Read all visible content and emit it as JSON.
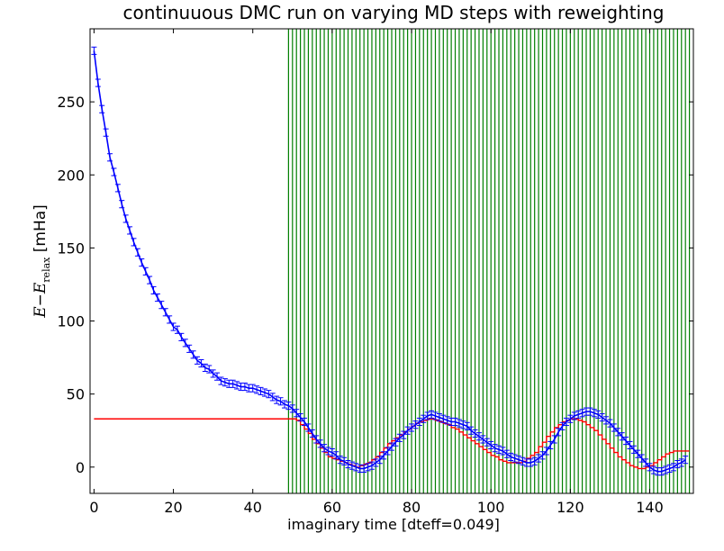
{
  "chart_data": {
    "type": "line",
    "title": "continuuous DMC run on varying MD steps with reweighting",
    "xlabel": "imaginary time [dteff=0.049]",
    "ylabel": {
      "var": "E",
      "minus": "−",
      "sub_var": "E",
      "sub": "relax",
      "unit": " [mHa]"
    },
    "xlim": [
      -1,
      151
    ],
    "ylim": [
      -18,
      300
    ],
    "xticks": [
      0,
      20,
      40,
      60,
      80,
      100,
      120,
      140
    ],
    "yticks": [
      0,
      50,
      100,
      150,
      200,
      250
    ],
    "grid": false,
    "series": [
      {
        "color": "#0000ff",
        "style": "line-with-errorbars",
        "error": 2.5,
        "x": [
          0,
          1,
          2,
          3,
          4,
          5,
          6,
          7,
          8,
          9,
          10,
          11,
          12,
          13,
          14,
          15,
          16,
          17,
          18,
          19,
          20,
          21,
          22,
          23,
          24,
          25,
          26,
          27,
          28,
          29,
          30,
          31,
          32,
          33,
          34,
          35,
          36,
          37,
          38,
          39,
          40,
          41,
          42,
          43,
          44,
          45,
          46,
          47,
          48,
          49,
          50,
          51,
          52,
          53,
          54,
          55,
          56,
          57,
          58,
          59,
          60,
          61,
          62,
          63,
          64,
          65,
          66,
          67,
          68,
          69,
          70,
          71,
          72,
          73,
          74,
          75,
          76,
          77,
          78,
          79,
          80,
          81,
          82,
          83,
          84,
          85,
          86,
          87,
          88,
          89,
          90,
          91,
          92,
          93,
          94,
          95,
          96,
          97,
          98,
          99,
          100,
          101,
          102,
          103,
          104,
          105,
          106,
          107,
          108,
          109,
          110,
          111,
          112,
          113,
          114,
          115,
          116,
          117,
          118,
          119,
          120,
          121,
          122,
          123,
          124,
          125,
          126,
          127,
          128,
          129,
          130,
          131,
          132,
          133,
          134,
          135,
          136,
          137,
          138,
          139,
          140,
          141,
          142,
          143,
          144,
          145,
          146,
          147,
          148,
          149
        ],
        "y": [
          285,
          263,
          245,
          229,
          212,
          202,
          191,
          180,
          170,
          162,
          154,
          147,
          140,
          134,
          128,
          121,
          116,
          111,
          106,
          101,
          96,
          94,
          89,
          85,
          81,
          77,
          73,
          71,
          68,
          67,
          64,
          62,
          59,
          58,
          57,
          57,
          56,
          55,
          55,
          54,
          54,
          53,
          52,
          51,
          50,
          48,
          46,
          45,
          43,
          42,
          40,
          37,
          34,
          31,
          27,
          23,
          19,
          16,
          13,
          11,
          10,
          8,
          5,
          4,
          2,
          1,
          0,
          -1,
          -1,
          0,
          1,
          3,
          5,
          8,
          11,
          14,
          17,
          20,
          22,
          25,
          27,
          29,
          31,
          33,
          35,
          36,
          35,
          34,
          33,
          32,
          31,
          31,
          30,
          29,
          28,
          25,
          23,
          21,
          19,
          17,
          15,
          13,
          12,
          11,
          9,
          7,
          6,
          5,
          4,
          3,
          3,
          4,
          6,
          8,
          11,
          15,
          19,
          24,
          28,
          31,
          33,
          35,
          36,
          37,
          38,
          38,
          37,
          36,
          34,
          32,
          30,
          27,
          24,
          21,
          18,
          15,
          12,
          9,
          6,
          3,
          0,
          -2,
          -3,
          -3,
          -2,
          -1,
          0,
          2,
          3,
          5
        ]
      },
      {
        "color": "#ff0000",
        "style": "step",
        "x": [
          0,
          49,
          50,
          51,
          52,
          53,
          54,
          55,
          56,
          57,
          58,
          59,
          60,
          61,
          62,
          63,
          64,
          65,
          66,
          67,
          68,
          69,
          70,
          71,
          72,
          73,
          74,
          75,
          76,
          77,
          78,
          79,
          80,
          81,
          82,
          83,
          84,
          85,
          86,
          87,
          88,
          89,
          90,
          91,
          92,
          93,
          94,
          95,
          96,
          97,
          98,
          99,
          100,
          101,
          102,
          103,
          104,
          105,
          106,
          107,
          108,
          109,
          110,
          111,
          112,
          113,
          114,
          115,
          116,
          117,
          118,
          119,
          120,
          121,
          122,
          123,
          124,
          125,
          126,
          127,
          128,
          129,
          130,
          131,
          132,
          133,
          134,
          135,
          136,
          137,
          138,
          139,
          140,
          141,
          142,
          143,
          144,
          145,
          146,
          147,
          148,
          149,
          150
        ],
        "y": [
          33,
          33,
          33,
          32,
          29,
          26,
          23,
          19,
          16,
          13,
          10,
          7,
          6,
          5,
          4,
          3,
          2,
          1,
          0,
          1,
          2,
          3,
          5,
          7,
          10,
          13,
          16,
          18,
          20,
          22,
          24,
          26,
          28,
          30,
          31,
          32,
          33,
          33,
          32,
          31,
          30,
          29,
          27,
          26,
          24,
          22,
          20,
          18,
          16,
          14,
          12,
          10,
          8,
          7,
          5,
          4,
          3,
          3,
          3,
          3,
          4,
          6,
          8,
          10,
          14,
          17,
          21,
          24,
          27,
          29,
          31,
          32,
          33,
          33,
          32,
          31,
          29,
          27,
          25,
          22,
          19,
          16,
          13,
          10,
          7,
          5,
          3,
          1,
          0,
          -1,
          -1,
          0,
          1,
          3,
          5,
          7,
          9,
          10,
          11,
          11,
          11,
          11,
          11
        ]
      }
    ],
    "vlines": {
      "color": "#007f00",
      "x_start": 49,
      "x_end": 150,
      "step": 1
    }
  }
}
